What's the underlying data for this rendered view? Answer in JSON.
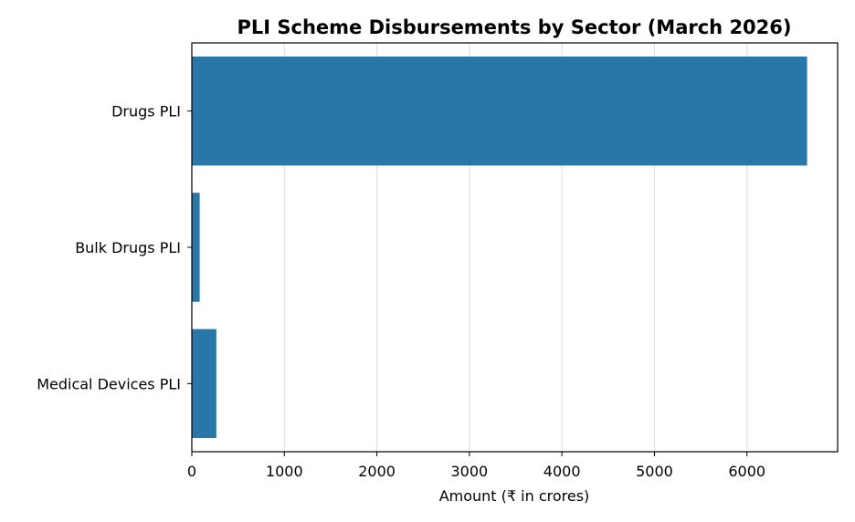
{
  "chart_data": {
    "type": "bar",
    "orientation": "horizontal",
    "title": "PLI Scheme Disbursements by Sector (March 2026)",
    "xlabel": "Amount (₹ in crores)",
    "ylabel": "",
    "categories": [
      "Drugs PLI",
      "Bulk Drugs PLI",
      "Medical Devices PLI"
    ],
    "values": [
      6650,
      85,
      265
    ],
    "xlim": [
      0,
      6980
    ],
    "xticks": [
      0,
      1000,
      2000,
      3000,
      4000,
      5000,
      6000
    ],
    "grid": "x-only",
    "bar_color": "#2976a8",
    "legend": "none"
  }
}
